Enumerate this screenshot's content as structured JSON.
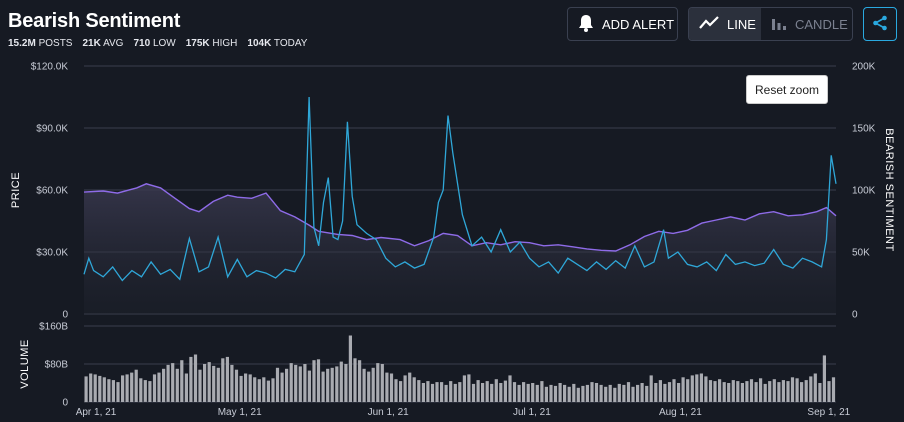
{
  "header": {
    "title": "Bearish Sentiment",
    "stats": [
      {
        "value": "15.2M",
        "label": "POSTS"
      },
      {
        "value": "21K",
        "label": "AVG"
      },
      {
        "value": "710",
        "label": "LOW"
      },
      {
        "value": "175K",
        "label": "HIGH"
      },
      {
        "value": "104K",
        "label": "TODAY"
      }
    ]
  },
  "toolbar": {
    "add_alert_label": "ADD ALERT",
    "line_label": "LINE",
    "candle_label": "CANDLE",
    "active_mode": "LINE",
    "bell_icon": "bell-icon",
    "line_icon": "line-chart-icon",
    "candle_icon": "candle-chart-icon",
    "share_icon": "share-icon"
  },
  "reset_zoom_label": "Reset zoom",
  "colors": {
    "background": "#161a23",
    "price_line": "#8e6be8",
    "sentiment_line": "#2fa7d8",
    "volume_bar": "#a9abb1",
    "accent": "#2aa9e0"
  },
  "chart_data": [
    {
      "type": "line",
      "ylabel": "PRICE",
      "ylabel_right": "BEARISH SENTIMENT",
      "ylim": [
        0,
        120000
      ],
      "ylim_right": [
        0,
        200000
      ],
      "yticks_left": [
        "0",
        "$30.0K",
        "$60.0K",
        "$90.0K",
        "$120.0K"
      ],
      "yticks_right": [
        "0",
        "50K",
        "100K",
        "150K",
        "200K"
      ],
      "xticks": [
        "Apr 1, 21",
        "May 1, 21",
        "Jun 1, 21",
        "Jul 1, 21",
        "Aug 1, 21",
        "Sep 1, 21"
      ],
      "x_range": [
        "2021-04-01",
        "2021-09-05"
      ],
      "grid": true,
      "series": [
        {
          "axis": "left",
          "points": [
            [
              "2021-04-01",
              59000
            ],
            [
              "2021-04-05",
              59500
            ],
            [
              "2021-04-08",
              58500
            ],
            [
              "2021-04-12",
              61000
            ],
            [
              "2021-04-14",
              63000
            ],
            [
              "2021-04-17",
              61000
            ],
            [
              "2021-04-20",
              56000
            ],
            [
              "2021-04-23",
              51000
            ],
            [
              "2021-04-25",
              49500
            ],
            [
              "2021-04-28",
              54500
            ],
            [
              "2021-05-01",
              57500
            ],
            [
              "2021-05-03",
              56500
            ],
            [
              "2021-05-06",
              56000
            ],
            [
              "2021-05-09",
              58500
            ],
            [
              "2021-05-12",
              50000
            ],
            [
              "2021-05-15",
              47000
            ],
            [
              "2021-05-18",
              43000
            ],
            [
              "2021-05-20",
              40000
            ],
            [
              "2021-05-24",
              38500
            ],
            [
              "2021-05-27",
              38000
            ],
            [
              "2021-05-30",
              36000
            ],
            [
              "2021-06-02",
              37000
            ],
            [
              "2021-06-06",
              36000
            ],
            [
              "2021-06-09",
              33000
            ],
            [
              "2021-06-12",
              35500
            ],
            [
              "2021-06-15",
              39000
            ],
            [
              "2021-06-18",
              38000
            ],
            [
              "2021-06-21",
              33000
            ],
            [
              "2021-06-24",
              34500
            ],
            [
              "2021-06-27",
              33500
            ],
            [
              "2021-06-30",
              35000
            ],
            [
              "2021-07-03",
              34500
            ],
            [
              "2021-07-06",
              33000
            ],
            [
              "2021-07-09",
              33500
            ],
            [
              "2021-07-12",
              32500
            ],
            [
              "2021-07-15",
              31500
            ],
            [
              "2021-07-18",
              30800
            ],
            [
              "2021-07-21",
              30500
            ],
            [
              "2021-07-24",
              33500
            ],
            [
              "2021-07-27",
              37500
            ],
            [
              "2021-07-30",
              40000
            ],
            [
              "2021-08-02",
              39000
            ],
            [
              "2021-08-05",
              40500
            ],
            [
              "2021-08-08",
              44000
            ],
            [
              "2021-08-11",
              45500
            ],
            [
              "2021-08-14",
              47000
            ],
            [
              "2021-08-17",
              45500
            ],
            [
              "2021-08-20",
              48500
            ],
            [
              "2021-08-23",
              49500
            ],
            [
              "2021-08-26",
              47500
            ],
            [
              "2021-08-29",
              48000
            ],
            [
              "2021-09-01",
              49500
            ],
            [
              "2021-09-03",
              51500
            ],
            [
              "2021-09-05",
              47500
            ]
          ]
        },
        {
          "axis": "right",
          "points": [
            [
              "2021-04-01",
              32000
            ],
            [
              "2021-04-02",
              45000
            ],
            [
              "2021-04-03",
              35000
            ],
            [
              "2021-04-05",
              30000
            ],
            [
              "2021-04-07",
              38000
            ],
            [
              "2021-04-09",
              27000
            ],
            [
              "2021-04-11",
              35000
            ],
            [
              "2021-04-13",
              30000
            ],
            [
              "2021-04-15",
              42000
            ],
            [
              "2021-04-17",
              32000
            ],
            [
              "2021-04-19",
              36000
            ],
            [
              "2021-04-21",
              28000
            ],
            [
              "2021-04-23",
              61000
            ],
            [
              "2021-04-25",
              34000
            ],
            [
              "2021-04-27",
              38000
            ],
            [
              "2021-04-29",
              62000
            ],
            [
              "2021-05-01",
              30000
            ],
            [
              "2021-05-03",
              44000
            ],
            [
              "2021-05-05",
              30000
            ],
            [
              "2021-05-07",
              35000
            ],
            [
              "2021-05-09",
              33000
            ],
            [
              "2021-05-11",
              29000
            ],
            [
              "2021-05-13",
              36000
            ],
            [
              "2021-05-15",
              34000
            ],
            [
              "2021-05-17",
              48000
            ],
            [
              "2021-05-18",
              175000
            ],
            [
              "2021-05-19",
              70000
            ],
            [
              "2021-05-20",
              55000
            ],
            [
              "2021-05-21",
              90000
            ],
            [
              "2021-05-22",
              110000
            ],
            [
              "2021-05-23",
              62000
            ],
            [
              "2021-05-24",
              60000
            ],
            [
              "2021-05-25",
              75000
            ],
            [
              "2021-05-26",
              155000
            ],
            [
              "2021-05-27",
              95000
            ],
            [
              "2021-05-28",
              72000
            ],
            [
              "2021-05-30",
              65000
            ],
            [
              "2021-06-01",
              60000
            ],
            [
              "2021-06-03",
              45000
            ],
            [
              "2021-06-05",
              38000
            ],
            [
              "2021-06-07",
              42000
            ],
            [
              "2021-06-09",
              37000
            ],
            [
              "2021-06-11",
              40000
            ],
            [
              "2021-06-13",
              62000
            ],
            [
              "2021-06-14",
              90000
            ],
            [
              "2021-06-15",
              100000
            ],
            [
              "2021-06-16",
              160000
            ],
            [
              "2021-06-17",
              130000
            ],
            [
              "2021-06-19",
              80000
            ],
            [
              "2021-06-21",
              55000
            ],
            [
              "2021-06-23",
              62000
            ],
            [
              "2021-06-25",
              50000
            ],
            [
              "2021-06-27",
              68000
            ],
            [
              "2021-06-29",
              50000
            ],
            [
              "2021-07-01",
              58000
            ],
            [
              "2021-07-03",
              45000
            ],
            [
              "2021-07-05",
              38000
            ],
            [
              "2021-07-07",
              42000
            ],
            [
              "2021-07-09",
              33000
            ],
            [
              "2021-07-11",
              45000
            ],
            [
              "2021-07-13",
              40000
            ],
            [
              "2021-07-15",
              35000
            ],
            [
              "2021-07-17",
              42000
            ],
            [
              "2021-07-19",
              36000
            ],
            [
              "2021-07-21",
              43000
            ],
            [
              "2021-07-23",
              37000
            ],
            [
              "2021-07-25",
              55000
            ],
            [
              "2021-07-27",
              38000
            ],
            [
              "2021-07-29",
              42000
            ],
            [
              "2021-07-31",
              68000
            ],
            [
              "2021-08-01",
              45000
            ],
            [
              "2021-08-03",
              50000
            ],
            [
              "2021-08-05",
              40000
            ],
            [
              "2021-08-07",
              38000
            ],
            [
              "2021-08-09",
              42000
            ],
            [
              "2021-08-11",
              35000
            ],
            [
              "2021-08-13",
              48000
            ],
            [
              "2021-08-15",
              40000
            ],
            [
              "2021-08-17",
              42000
            ],
            [
              "2021-08-19",
              39000
            ],
            [
              "2021-08-21",
              41000
            ],
            [
              "2021-08-23",
              52000
            ],
            [
              "2021-08-25",
              40000
            ],
            [
              "2021-08-27",
              37000
            ],
            [
              "2021-08-29",
              45000
            ],
            [
              "2021-08-31",
              42000
            ],
            [
              "2021-09-02",
              38000
            ],
            [
              "2021-09-03",
              60000
            ],
            [
              "2021-09-04",
              128000
            ],
            [
              "2021-09-05",
              105000
            ]
          ]
        }
      ]
    },
    {
      "type": "bar",
      "ylabel": "VOLUME",
      "ylim": [
        0,
        160000000000
      ],
      "yticks": [
        "0",
        "$80B",
        "$160B"
      ],
      "x_range": [
        "2021-04-01",
        "2021-09-05"
      ],
      "values": [
        54,
        60,
        58,
        55,
        52,
        48,
        46,
        42,
        56,
        58,
        62,
        68,
        50,
        46,
        44,
        58,
        62,
        70,
        78,
        82,
        70,
        88,
        60,
        95,
        100,
        68,
        80,
        84,
        76,
        72,
        92,
        95,
        78,
        68,
        55,
        60,
        58,
        52,
        48,
        52,
        45,
        50,
        72,
        62,
        70,
        82,
        78,
        75,
        80,
        66,
        88,
        90,
        64,
        70,
        72,
        75,
        85,
        80,
        140,
        92,
        88,
        70,
        64,
        72,
        82,
        80,
        62,
        60,
        48,
        44,
        56,
        62,
        52,
        46,
        40,
        44,
        38,
        42,
        42,
        36,
        44,
        38,
        42,
        56,
        58,
        38,
        46,
        40,
        44,
        38,
        48,
        40,
        45,
        56,
        42,
        36,
        42,
        38,
        40,
        36,
        44,
        32,
        36,
        34,
        40,
        36,
        32,
        38,
        30,
        34,
        36,
        42,
        40,
        36,
        32,
        36,
        30,
        38,
        36,
        42,
        32,
        36,
        40,
        34,
        56,
        40,
        46,
        38,
        42,
        48,
        40,
        52,
        48,
        56,
        58,
        60,
        54,
        46,
        44,
        48,
        42,
        40,
        46,
        44,
        40,
        44,
        48,
        42,
        50,
        38,
        44,
        48,
        42,
        46,
        44,
        52,
        50,
        42,
        46,
        54,
        60,
        40,
        98,
        44,
        52
      ]
    }
  ]
}
